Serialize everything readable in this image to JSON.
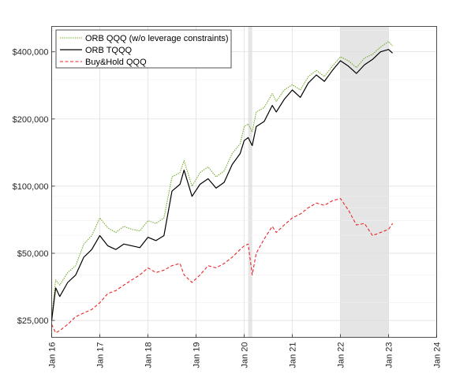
{
  "chart_data": {
    "type": "line",
    "title": "",
    "xlabel": "",
    "ylabel": "",
    "y_scale": "log",
    "xlim": [
      "2016-01",
      "2024-01"
    ],
    "ylim": [
      21000,
      520000
    ],
    "grid": true,
    "legend_position": "top-left",
    "x_tick_labels": [
      "Jan 16",
      "Jan 17",
      "Jan 18",
      "Jan 19",
      "Jan 20",
      "Jan 21",
      "Jan 22",
      "Jan 23",
      "Jan 24"
    ],
    "y_tick_values": [
      25000,
      50000,
      100000,
      200000,
      400000
    ],
    "y_tick_labels": [
      "$25,000",
      "$50,000",
      "$100,000",
      "$200,000",
      "$400,000"
    ],
    "shaded_periods": [
      {
        "start": "2020-02",
        "end": "2020-03"
      },
      {
        "start": "2022-01",
        "end": "2023-01"
      }
    ],
    "x": [
      "2016-01",
      "2016-02",
      "2016-03",
      "2016-05",
      "2016-07",
      "2016-09",
      "2016-11",
      "2017-01",
      "2017-03",
      "2017-05",
      "2017-07",
      "2017-09",
      "2017-11",
      "2018-01",
      "2018-03",
      "2018-05",
      "2018-07",
      "2018-09",
      "2018-10",
      "2018-12",
      "2019-02",
      "2019-04",
      "2019-06",
      "2019-08",
      "2019-10",
      "2019-12",
      "2020-01",
      "2020-02",
      "2020-03",
      "2020-04",
      "2020-06",
      "2020-08",
      "2020-09",
      "2020-11",
      "2021-01",
      "2021-03",
      "2021-05",
      "2021-07",
      "2021-09",
      "2021-11",
      "2022-01",
      "2022-03",
      "2022-05",
      "2022-07",
      "2022-09",
      "2022-11",
      "2023-01",
      "2023-02"
    ],
    "series": [
      {
        "name": "ORB QQQ (w/o leverage constraints)",
        "color": "#77ac30",
        "style": "dotted",
        "values": [
          26000,
          38000,
          36000,
          41000,
          44000,
          55000,
          60000,
          72000,
          65000,
          62000,
          66000,
          64000,
          63000,
          70000,
          68000,
          72000,
          110000,
          115000,
          130000,
          100000,
          115000,
          122000,
          110000,
          117000,
          140000,
          155000,
          185000,
          190000,
          175000,
          215000,
          225000,
          260000,
          240000,
          270000,
          285000,
          270000,
          310000,
          330000,
          310000,
          345000,
          380000,
          365000,
          340000,
          375000,
          390000,
          420000,
          445000,
          425000
        ]
      },
      {
        "name": "ORB TQQQ",
        "color": "#000000",
        "style": "solid",
        "values": [
          25000,
          35000,
          32000,
          37000,
          40000,
          48000,
          52000,
          60000,
          54000,
          52000,
          55000,
          54000,
          53000,
          59000,
          57000,
          60000,
          95000,
          102000,
          118000,
          90000,
          102000,
          108000,
          98000,
          104000,
          125000,
          140000,
          160000,
          165000,
          152000,
          185000,
          195000,
          230000,
          215000,
          245000,
          270000,
          250000,
          290000,
          315000,
          295000,
          330000,
          365000,
          345000,
          320000,
          350000,
          370000,
          400000,
          410000,
          395000
        ]
      },
      {
        "name": "Buy&Hold QQQ",
        "color": "#e8262a",
        "style": "dashed",
        "values": [
          24000,
          22000,
          22500,
          24000,
          26000,
          27000,
          28000,
          30000,
          33000,
          34000,
          36000,
          38000,
          40000,
          43000,
          41000,
          42000,
          44000,
          45000,
          40000,
          37000,
          40000,
          44000,
          43000,
          45000,
          48000,
          52000,
          54000,
          55000,
          40000,
          50000,
          58000,
          66000,
          62000,
          67000,
          72000,
          75000,
          80000,
          84000,
          82000,
          86000,
          88000,
          78000,
          67000,
          68000,
          60000,
          62000,
          64000,
          68000
        ]
      }
    ]
  }
}
